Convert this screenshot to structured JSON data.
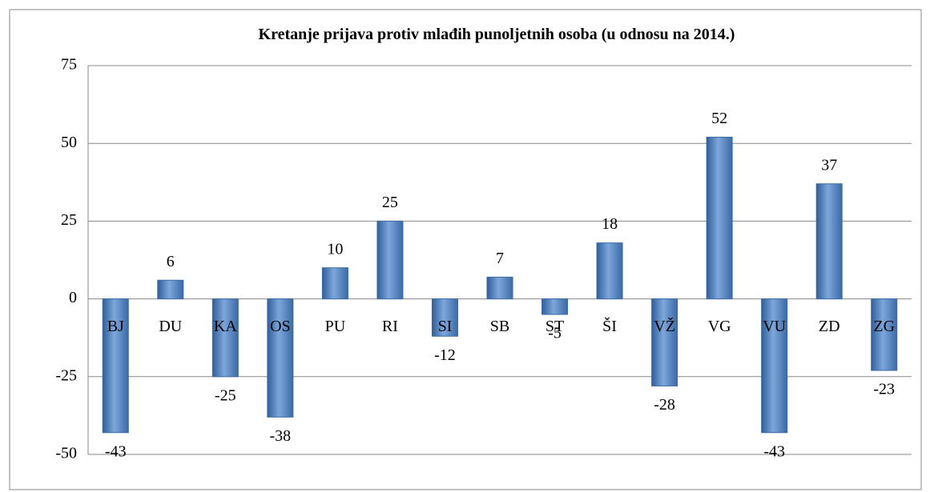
{
  "chart_data": {
    "type": "bar",
    "title": "Kretanje prijava protiv mlađih punoljetnih osoba (u odnosu na 2014.)",
    "categories": [
      "BJ",
      "DU",
      "KA",
      "OS",
      "PU",
      "RI",
      "SI",
      "SB",
      "ST",
      "ŠI",
      "VŽ",
      "VG",
      "VU",
      "ZD",
      "ZG"
    ],
    "values": [
      -43,
      6,
      -25,
      -38,
      10,
      25,
      -12,
      7,
      -5,
      18,
      -28,
      52,
      -43,
      37,
      -23
    ],
    "color": "#4f81bd",
    "ylim": [
      -50,
      75
    ],
    "yticks": [
      -50,
      -25,
      0,
      25,
      50,
      75
    ],
    "grid": true
  }
}
